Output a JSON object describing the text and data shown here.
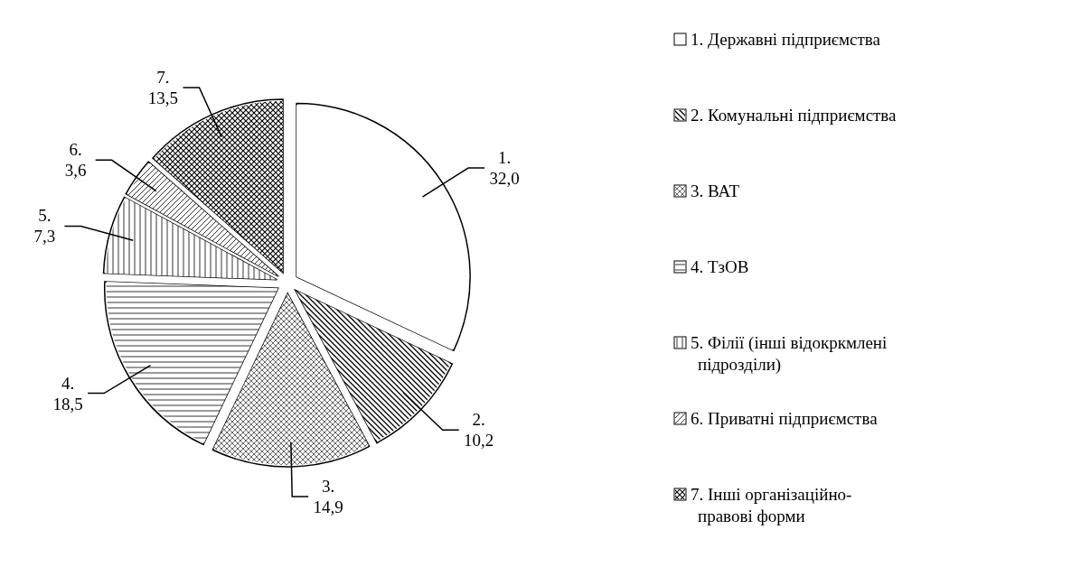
{
  "chart_data": {
    "type": "pie",
    "categories": [
      "1. Державні підприємства",
      "2. Комунальні підприємства",
      "3. ВАТ",
      "4. ТзОВ",
      "5. Філії (інші відокркмлені підрозділи)",
      "6. Приватні підприємства",
      "7. Інші організаційно-правові форми"
    ],
    "values": [
      32.0,
      10.2,
      14.9,
      18.5,
      7.3,
      3.6,
      13.5
    ],
    "colors": [
      "#ffffff",
      "#ffffff",
      "#ffffff",
      "#ffffff",
      "#ffffff",
      "#ffffff",
      "#ffffff"
    ],
    "value_labels": [
      "1. 32,0",
      "2. 10,2",
      "3. 14,9",
      "4. 18,5",
      "5. 7,3",
      "6. 3,6",
      "7. 13,5"
    ],
    "legend": "right"
  }
}
